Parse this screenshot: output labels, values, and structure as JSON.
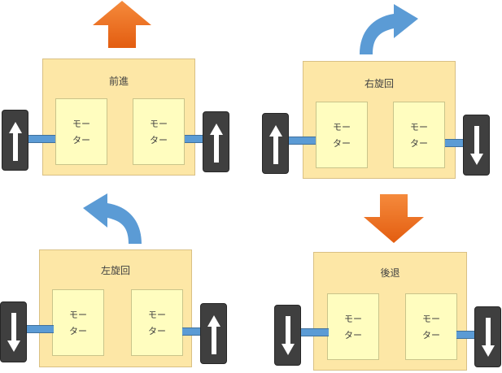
{
  "motor_label": {
    "line1": "モー",
    "line2": "ター"
  },
  "panels": {
    "forward": {
      "title": "前進"
    },
    "right_turn": {
      "title": "右旋回"
    },
    "left_turn": {
      "title": "左旋回"
    },
    "backward": {
      "title": "後退"
    }
  },
  "colors": {
    "orange": "#ef7625",
    "blue": "#5b9bd5",
    "chassis": "#fde7a6",
    "motor": "#fffdbf",
    "wheel": "#3f3f3f"
  }
}
